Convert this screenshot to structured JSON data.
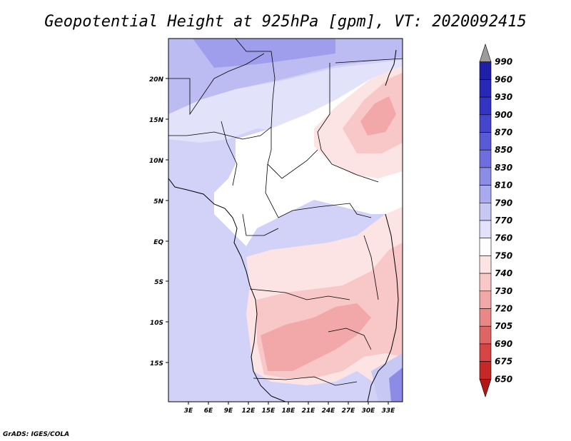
{
  "title": "Geopotential Height at 925hPa [gpm], VT: 2020092415",
  "credit": "GrADS: IGES/COLA",
  "lat_labels": [
    "20N",
    "15N",
    "10N",
    "5N",
    "EQ",
    "5S",
    "10S",
    "15S"
  ],
  "lon_labels": [
    "3E",
    "6E",
    "9E",
    "12E",
    "15E",
    "18E",
    "21E",
    "24E",
    "27E",
    "30E",
    "33E"
  ],
  "colorbar": {
    "levels": [
      "990",
      "960",
      "930",
      "900",
      "870",
      "850",
      "830",
      "810",
      "790",
      "770",
      "760",
      "750",
      "740",
      "730",
      "720",
      "705",
      "690",
      "675",
      "650"
    ],
    "colors": [
      "#9c9c9c",
      "#1e1ea8",
      "#2828b8",
      "#3434c4",
      "#4646cc",
      "#5a5ad6",
      "#6e6edf",
      "#8c8ce6",
      "#aaaaee",
      "#c8c8f5",
      "#e2e2fb",
      "#ffffff",
      "#fde4e4",
      "#f8c8c8",
      "#f2a8a8",
      "#ea8888",
      "#e06666",
      "#d64444",
      "#c62828",
      "#b01818"
    ]
  }
}
